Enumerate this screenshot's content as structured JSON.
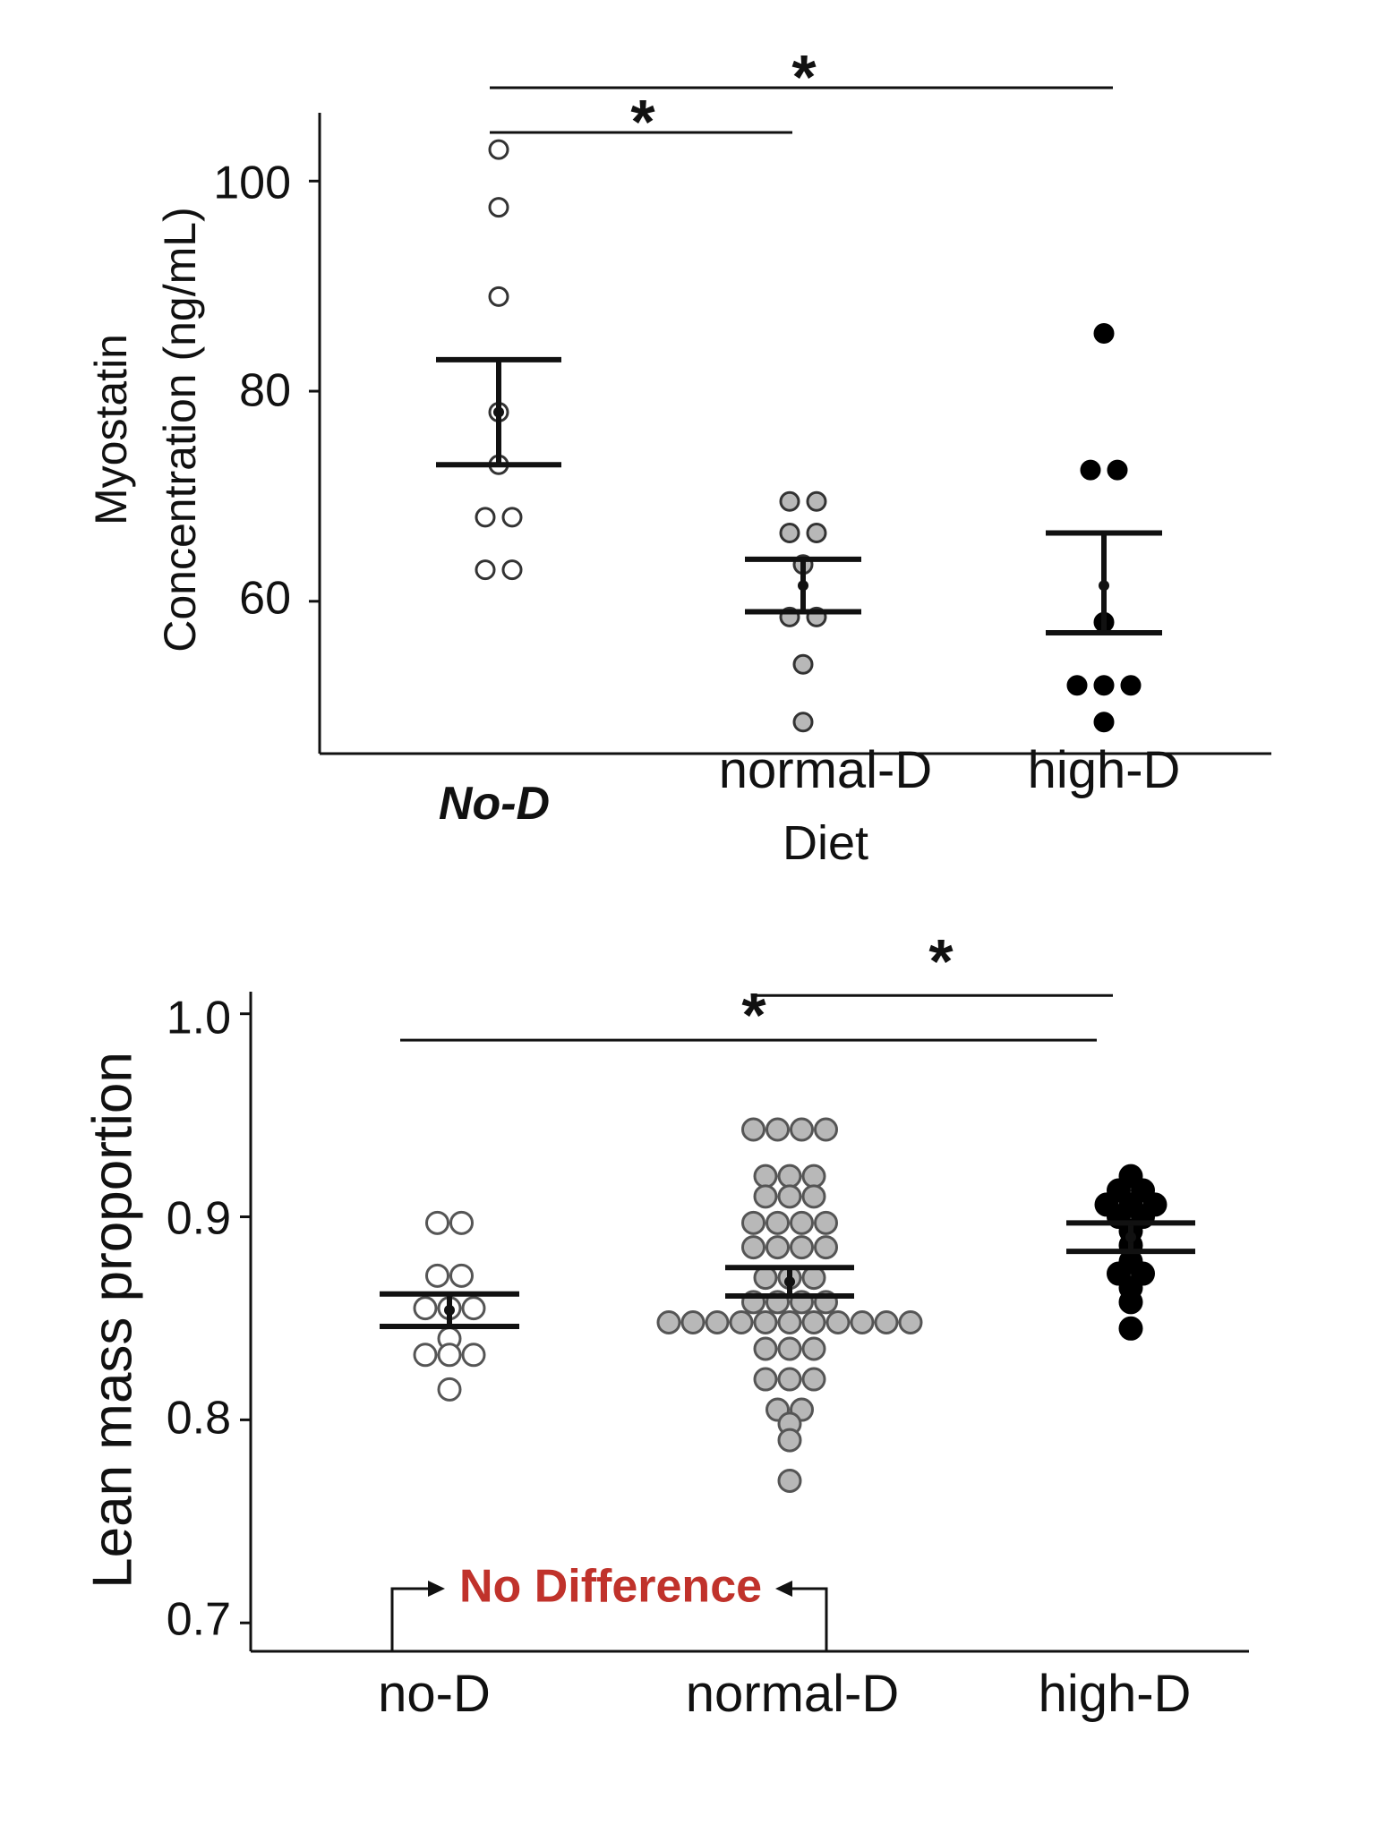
{
  "chart_data": [
    {
      "type": "scatter",
      "subtype": "dot-plot-with-mean-and-error-bars",
      "title": "",
      "xlabel": "Diet",
      "ylabel_lines": [
        "Myostatin",
        "Concentration (ng/mL)"
      ],
      "ylim": [
        45.5,
        106.5
      ],
      "yticks": [
        60,
        80,
        100
      ],
      "categories": [
        "No-D",
        "normal-D",
        "high-D"
      ],
      "category_styles": [
        {
          "fill": "#ffffff",
          "stroke": "#333333"
        },
        {
          "fill": "#b8b8b8",
          "stroke": "#333333"
        },
        {
          "fill": "#000000",
          "stroke": "#000000"
        }
      ],
      "groups": [
        {
          "name": "No-D",
          "points": [
            103,
            97.5,
            89,
            78,
            73,
            68,
            68,
            63,
            63
          ],
          "mean": 78,
          "error": [
            73,
            83
          ]
        },
        {
          "name": "normal-D",
          "points": [
            69.5,
            69.5,
            66.5,
            66.5,
            63.5,
            58.5,
            58.5,
            54,
            48.5
          ],
          "mean": 61.5,
          "error": [
            59,
            64
          ]
        },
        {
          "name": "high-D",
          "points": [
            85.5,
            72.5,
            72.5,
            58,
            52,
            52,
            52,
            48.5
          ],
          "mean": 61.5,
          "error": [
            57,
            66.5
          ]
        }
      ],
      "significance": [
        {
          "from": "No-D",
          "to": "normal-D",
          "label": "*",
          "y": 104.9
        },
        {
          "from": "No-D",
          "to": "high-D",
          "label": "*",
          "y": 109
        }
      ]
    },
    {
      "type": "scatter",
      "subtype": "dot-plot-with-mean-and-error-bars",
      "title": "",
      "xlabel": "",
      "ylabel": "Lean mass proportion",
      "ylim": [
        0.686,
        1.01
      ],
      "yticks": [
        0.7,
        0.8,
        0.9,
        1.0
      ],
      "ytick_labels": [
        "0.7",
        "0.8",
        "0.9",
        "1.0"
      ],
      "categories": [
        "no-D",
        "normal-D",
        "high-D"
      ],
      "category_styles": [
        {
          "fill": "#ffffff",
          "stroke": "#555555"
        },
        {
          "fill": "#b8b8b8",
          "stroke": "#555555"
        },
        {
          "fill": "#000000",
          "stroke": "#000000"
        }
      ],
      "groups": [
        {
          "name": "no-D",
          "points": [
            0.897,
            0.897,
            0.871,
            0.871,
            0.855,
            0.855,
            0.855,
            0.84,
            0.832,
            0.832,
            0.832,
            0.815
          ],
          "mean": 0.854,
          "error": [
            0.846,
            0.862
          ]
        },
        {
          "name": "normal-D",
          "points": [
            0.943,
            0.943,
            0.943,
            0.943,
            0.92,
            0.92,
            0.92,
            0.91,
            0.91,
            0.91,
            0.897,
            0.897,
            0.897,
            0.897,
            0.885,
            0.885,
            0.885,
            0.885,
            0.87,
            0.87,
            0.87,
            0.858,
            0.858,
            0.858,
            0.858,
            0.848,
            0.848,
            0.848,
            0.848,
            0.848,
            0.848,
            0.848,
            0.848,
            0.848,
            0.848,
            0.848,
            0.835,
            0.835,
            0.835,
            0.82,
            0.82,
            0.82,
            0.805,
            0.805,
            0.798,
            0.79,
            0.77
          ],
          "mean": 0.868,
          "error": [
            0.861,
            0.875
          ]
        },
        {
          "name": "high-D",
          "points": [
            0.92,
            0.913,
            0.913,
            0.906,
            0.906,
            0.906,
            0.9,
            0.9,
            0.893,
            0.886,
            0.878,
            0.872,
            0.872,
            0.865,
            0.858,
            0.845
          ],
          "mean": 0.89,
          "error": [
            0.883,
            0.897
          ]
        }
      ],
      "significance": [
        {
          "from": "normal-D",
          "to": "high-D",
          "label": "*",
          "y": 1.009
        },
        {
          "from": "no-D",
          "to": "high-D",
          "label": "*",
          "y": 0.987
        }
      ],
      "annotation": {
        "text": "No Difference",
        "from": "no-D",
        "to": "normal-D",
        "color": "#c0322b"
      }
    }
  ]
}
